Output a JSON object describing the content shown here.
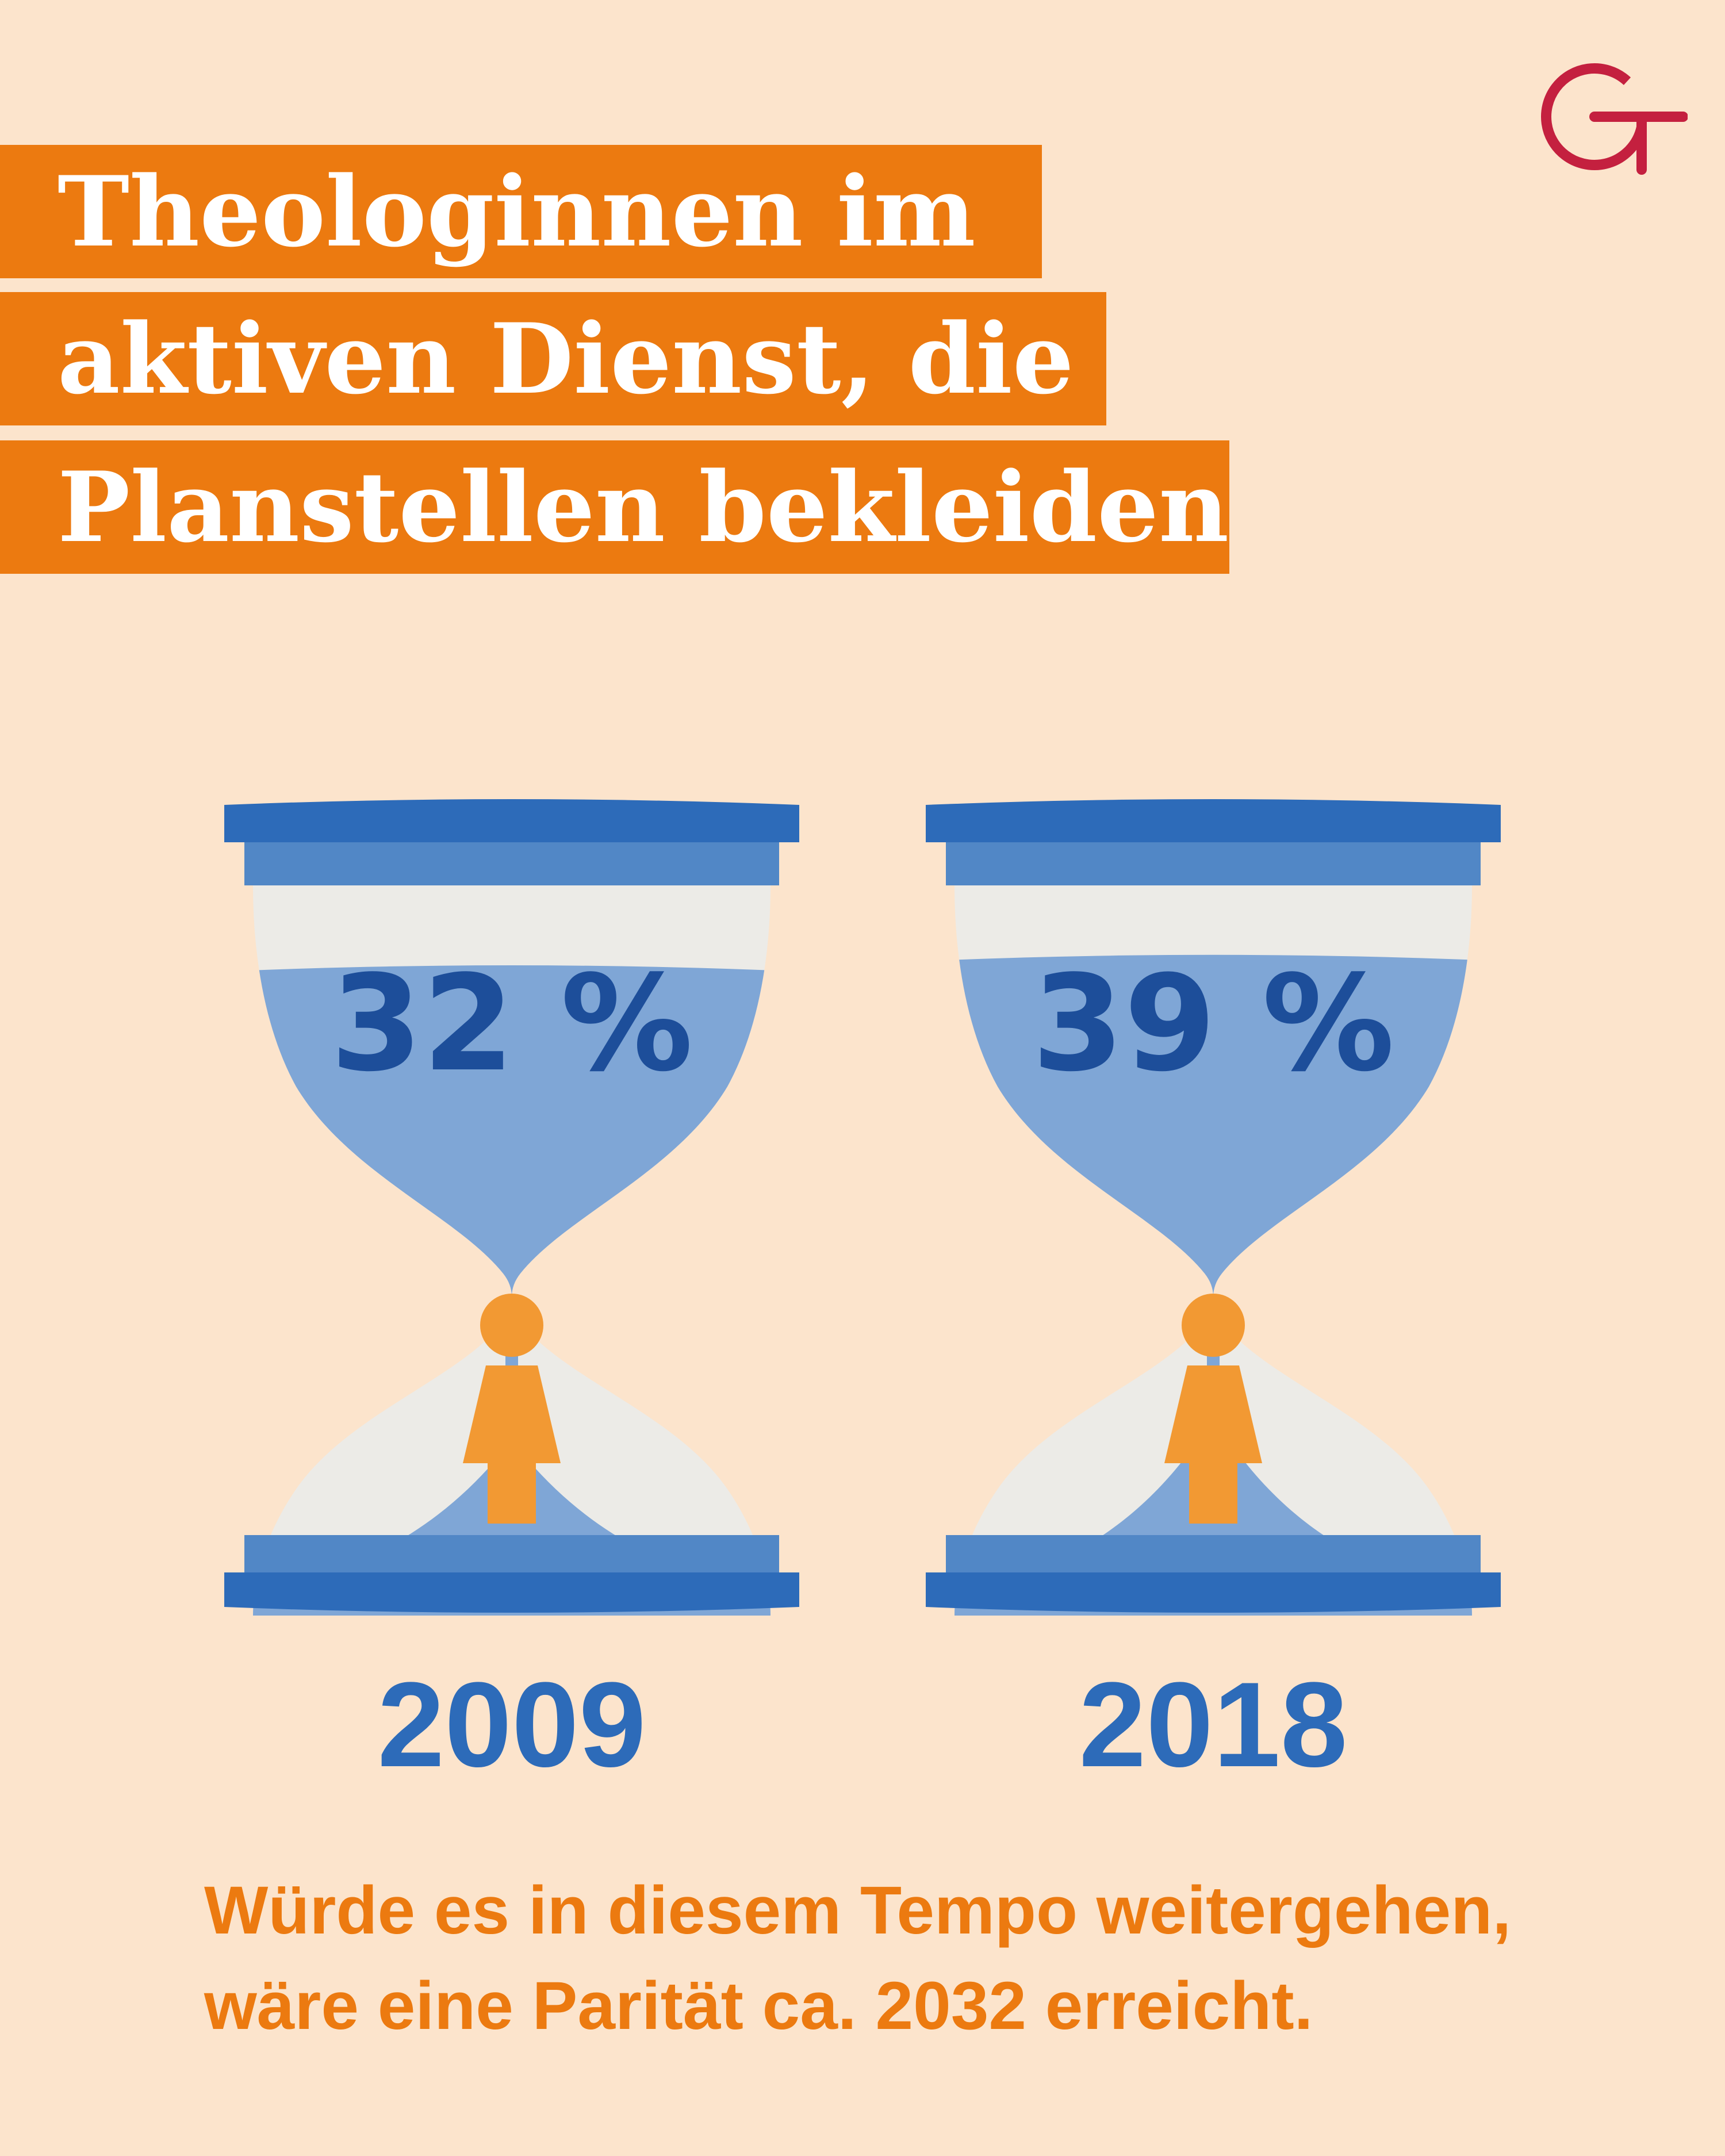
{
  "title": {
    "lines": [
      "Theologinnen im",
      "aktiven Dienst, die",
      "Planstellen bekleiden"
    ]
  },
  "logo": {
    "icon": "circle-plus-logo-icon",
    "color": "#c4203f"
  },
  "colors": {
    "background": "#fce4cc",
    "title_bg": "#ec7a10",
    "cap_dark": "#2d6bb9",
    "cap_mid": "#5187c6",
    "sand": "#7fa6d6",
    "value_text": "#1d4e9a",
    "figure": "#f29933",
    "glass": "#ecebe7"
  },
  "chart_data": {
    "type": "pictograph",
    "categories": [
      "2009",
      "2018"
    ],
    "values": [
      32,
      39
    ],
    "value_labels": [
      "32 %",
      "39 %"
    ],
    "unit": "%"
  },
  "footnote": {
    "lines": [
      "Würde es in diesem Tempo weitergehen,",
      "wäre eine Parität ca. 2032 erreicht."
    ]
  }
}
